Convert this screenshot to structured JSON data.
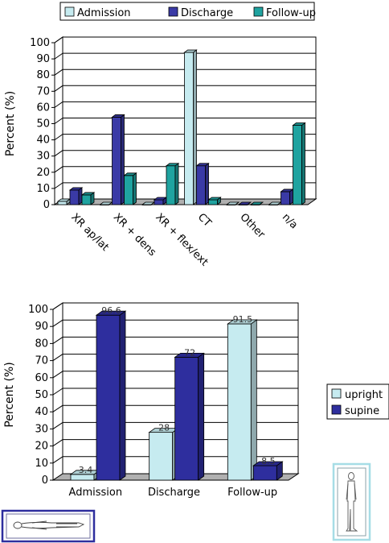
{
  "chart_data": [
    {
      "type": "bar",
      "style": "3d-clustered",
      "categories": [
        "XR ap/lat",
        "XR + dens",
        "XR + flex/ext",
        "CT",
        "Other",
        "n/a"
      ],
      "series": [
        {
          "name": "Admission",
          "color": "#c6ebf0",
          "values": [
            2,
            0,
            0,
            94,
            0,
            0
          ]
        },
        {
          "name": "Discharge",
          "color": "#3a3aa6",
          "values": [
            9,
            54,
            3,
            24,
            0,
            8
          ]
        },
        {
          "name": "Follow-up",
          "color": "#1fa3a0",
          "values": [
            6,
            18,
            24,
            3,
            0,
            49
          ]
        }
      ],
      "ylabel": "Percent (%)",
      "yticks": [
        "0",
        "10",
        "20",
        "30",
        "40",
        "50",
        "60",
        "70",
        "80",
        "90",
        "100"
      ],
      "ylim": [
        0,
        100
      ],
      "grid": true,
      "legend_position": "top"
    },
    {
      "type": "bar",
      "style": "3d-clustered",
      "categories": [
        "Admission",
        "Discharge",
        "Follow-up"
      ],
      "series": [
        {
          "name": "upright",
          "color": "#c6ebf0",
          "values": [
            3.4,
            28,
            91.5
          ],
          "labels": [
            "3.4",
            "28",
            "91.5"
          ]
        },
        {
          "name": "supine",
          "color": "#2e2e9e",
          "values": [
            96.6,
            72,
            8.5
          ],
          "labels": [
            "96.6",
            "72",
            "8.5"
          ]
        }
      ],
      "ylabel": "Percent (%)",
      "yticks": [
        "0",
        "10",
        "20",
        "30",
        "40",
        "50",
        "60",
        "70",
        "80",
        "90",
        "100"
      ],
      "ylim": [
        0,
        100
      ],
      "grid": true,
      "legend_position": "right"
    }
  ],
  "colors": {
    "grid": "#000000",
    "floor": "#b0b0b0",
    "frame_supine": "#2e2e9e",
    "frame_upright": "#a6dde6"
  },
  "icons": {
    "supine_figure": "lying-person-icon",
    "upright_figure": "standing-person-icon"
  }
}
